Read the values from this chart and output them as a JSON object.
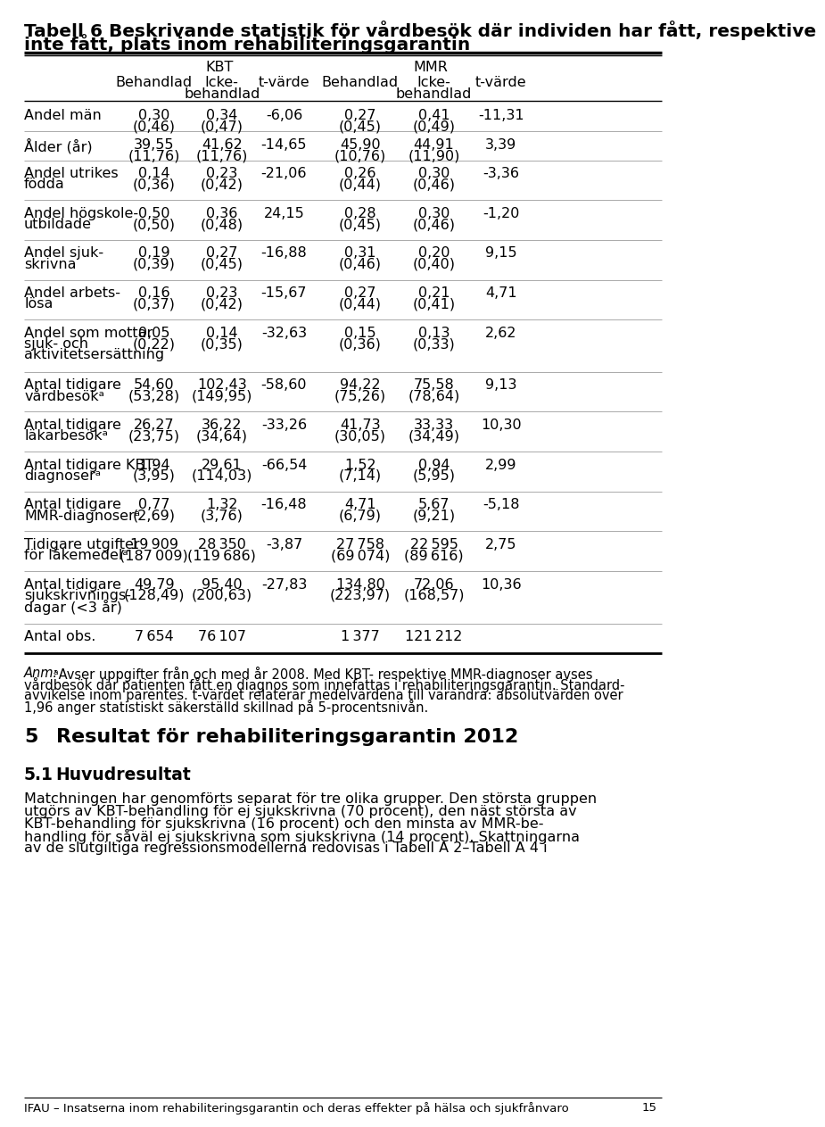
{
  "title_line1": "Tabell 6 Beskrivande statistik för vårdbesök där individen har fått, respektive",
  "title_line2": "inte fått, plats inom rehabiliteringsgarantin",
  "title_fontsize": 14.5,
  "body_fontsize": 11.5,
  "small_fontsize": 10.5,
  "header_kbt": "KBT",
  "header_mmr": "MMR",
  "col_headers": [
    "Behandlad",
    "Icke-\nbehandlad",
    "t-värde",
    "Behandlad",
    "Icke-\nbehandlad",
    "t-värde"
  ],
  "rows": [
    {
      "label": "Andel män",
      "label2": "",
      "label3": "",
      "vals": [
        "0,30",
        "0,34",
        "-6,06",
        "0,27",
        "0,41",
        "-11,31"
      ],
      "vals2": [
        "(0,46)",
        "(0,47)",
        "",
        "(0,45)",
        "(0,49)",
        ""
      ]
    },
    {
      "label": "Ålder (år)",
      "label2": "",
      "label3": "",
      "vals": [
        "39,55",
        "41,62",
        "-14,65",
        "45,90",
        "44,91",
        "3,39"
      ],
      "vals2": [
        "(11,76)",
        "(11,76)",
        "",
        "(10,76)",
        "(11,90)",
        ""
      ]
    },
    {
      "label": "Andel utrikes",
      "label2": "födda",
      "label3": "",
      "vals": [
        "0,14",
        "0,23",
        "-21,06",
        "0,26",
        "0,30",
        "-3,36"
      ],
      "vals2": [
        "(0,36)",
        "(0,42)",
        "",
        "(0,44)",
        "(0,46)",
        ""
      ]
    },
    {
      "label": "Andel högskole-",
      "label2": "utbildade",
      "label3": "",
      "vals": [
        "0,50",
        "0,36",
        "24,15",
        "0,28",
        "0,30",
        "-1,20"
      ],
      "vals2": [
        "(0,50)",
        "(0,48)",
        "",
        "(0,45)",
        "(0,46)",
        ""
      ]
    },
    {
      "label": "Andel sjuk-",
      "label2": "skrivna",
      "label3": "",
      "vals": [
        "0,19",
        "0,27",
        "-16,88",
        "0,31",
        "0,20",
        "9,15"
      ],
      "vals2": [
        "(0,39)",
        "(0,45)",
        "",
        "(0,46)",
        "(0,40)",
        ""
      ]
    },
    {
      "label": "Andel arbets-",
      "label2": "lösa",
      "label3": "",
      "vals": [
        "0,16",
        "0,23",
        "-15,67",
        "0,27",
        "0,21",
        "4,71"
      ],
      "vals2": [
        "(0,37)",
        "(0,42)",
        "",
        "(0,44)",
        "(0,41)",
        ""
      ]
    },
    {
      "label": "Andel som mottar",
      "label2": "sjuk- och",
      "label3": "aktivitetsersättning",
      "vals": [
        "0,05",
        "0,14",
        "-32,63",
        "0,15",
        "0,13",
        "2,62"
      ],
      "vals2": [
        "(0,22)",
        "(0,35)",
        "",
        "(0,36)",
        "(0,33)",
        ""
      ]
    },
    {
      "label": "Antal tidigare",
      "label2": "vårdbesökᵃ",
      "label3": "",
      "vals": [
        "54,60",
        "102,43",
        "-58,60",
        "94,22",
        "75,58",
        "9,13"
      ],
      "vals2": [
        "(53,28)",
        "(149,95)",
        "",
        "(75,26)",
        "(78,64)",
        ""
      ]
    },
    {
      "label": "Antal tidigare",
      "label2": "läkarbesökᵃ",
      "label3": "",
      "vals": [
        "26,27",
        "36,22",
        "-33,26",
        "41,73",
        "33,33",
        "10,30"
      ],
      "vals2": [
        "(23,75)",
        "(34,64)",
        "",
        "(30,05)",
        "(34,49)",
        ""
      ]
    },
    {
      "label": "Antal tidigare KBT-",
      "label2": "diagnoserᵃ",
      "label3": "",
      "vals": [
        "1,94",
        "29,61",
        "-66,54",
        "1,52",
        "0,94",
        "2,99"
      ],
      "vals2": [
        "(3,95)",
        "(114,03)",
        "",
        "(7,14)",
        "(5,95)",
        ""
      ]
    },
    {
      "label": "Antal tidigare",
      "label2": "MMR-diagnoserᵃ",
      "label3": "",
      "vals": [
        "0,77",
        "1,32",
        "-16,48",
        "4,71",
        "5,67",
        "-5,18"
      ],
      "vals2": [
        "(2,69)",
        "(3,76)",
        "",
        "(6,79)",
        "(9,21)",
        ""
      ]
    },
    {
      "label": "Tidigare utgifter",
      "label2": "för läkemedelᵃ",
      "label3": "",
      "vals": [
        "19 909",
        "28 350",
        "-3,87",
        "27 758",
        "22 595",
        "2,75"
      ],
      "vals2": [
        "(187 009)",
        "(119 686)",
        "",
        "(69 074)",
        "(89 616)",
        ""
      ]
    },
    {
      "label": "Antal tidigare",
      "label2": "sjukskrivnings-",
      "label3": "dagar (<3 år)",
      "vals": [
        "49,79",
        "95,40",
        "-27,83",
        "134,80",
        "72,06",
        "10,36"
      ],
      "vals2": [
        "(128,49)",
        "(200,63)",
        "",
        "(223,97)",
        "(168,57)",
        ""
      ]
    },
    {
      "label": "Antal obs.",
      "label2": "",
      "label3": "",
      "vals": [
        "7 654",
        "76 107",
        "",
        "1 377",
        "121 212",
        ""
      ],
      "vals2": [
        "",
        "",
        "",
        "",
        "",
        ""
      ]
    }
  ],
  "bg_color": "#ffffff",
  "text_color": "#000000",
  "line_color": "#000000"
}
